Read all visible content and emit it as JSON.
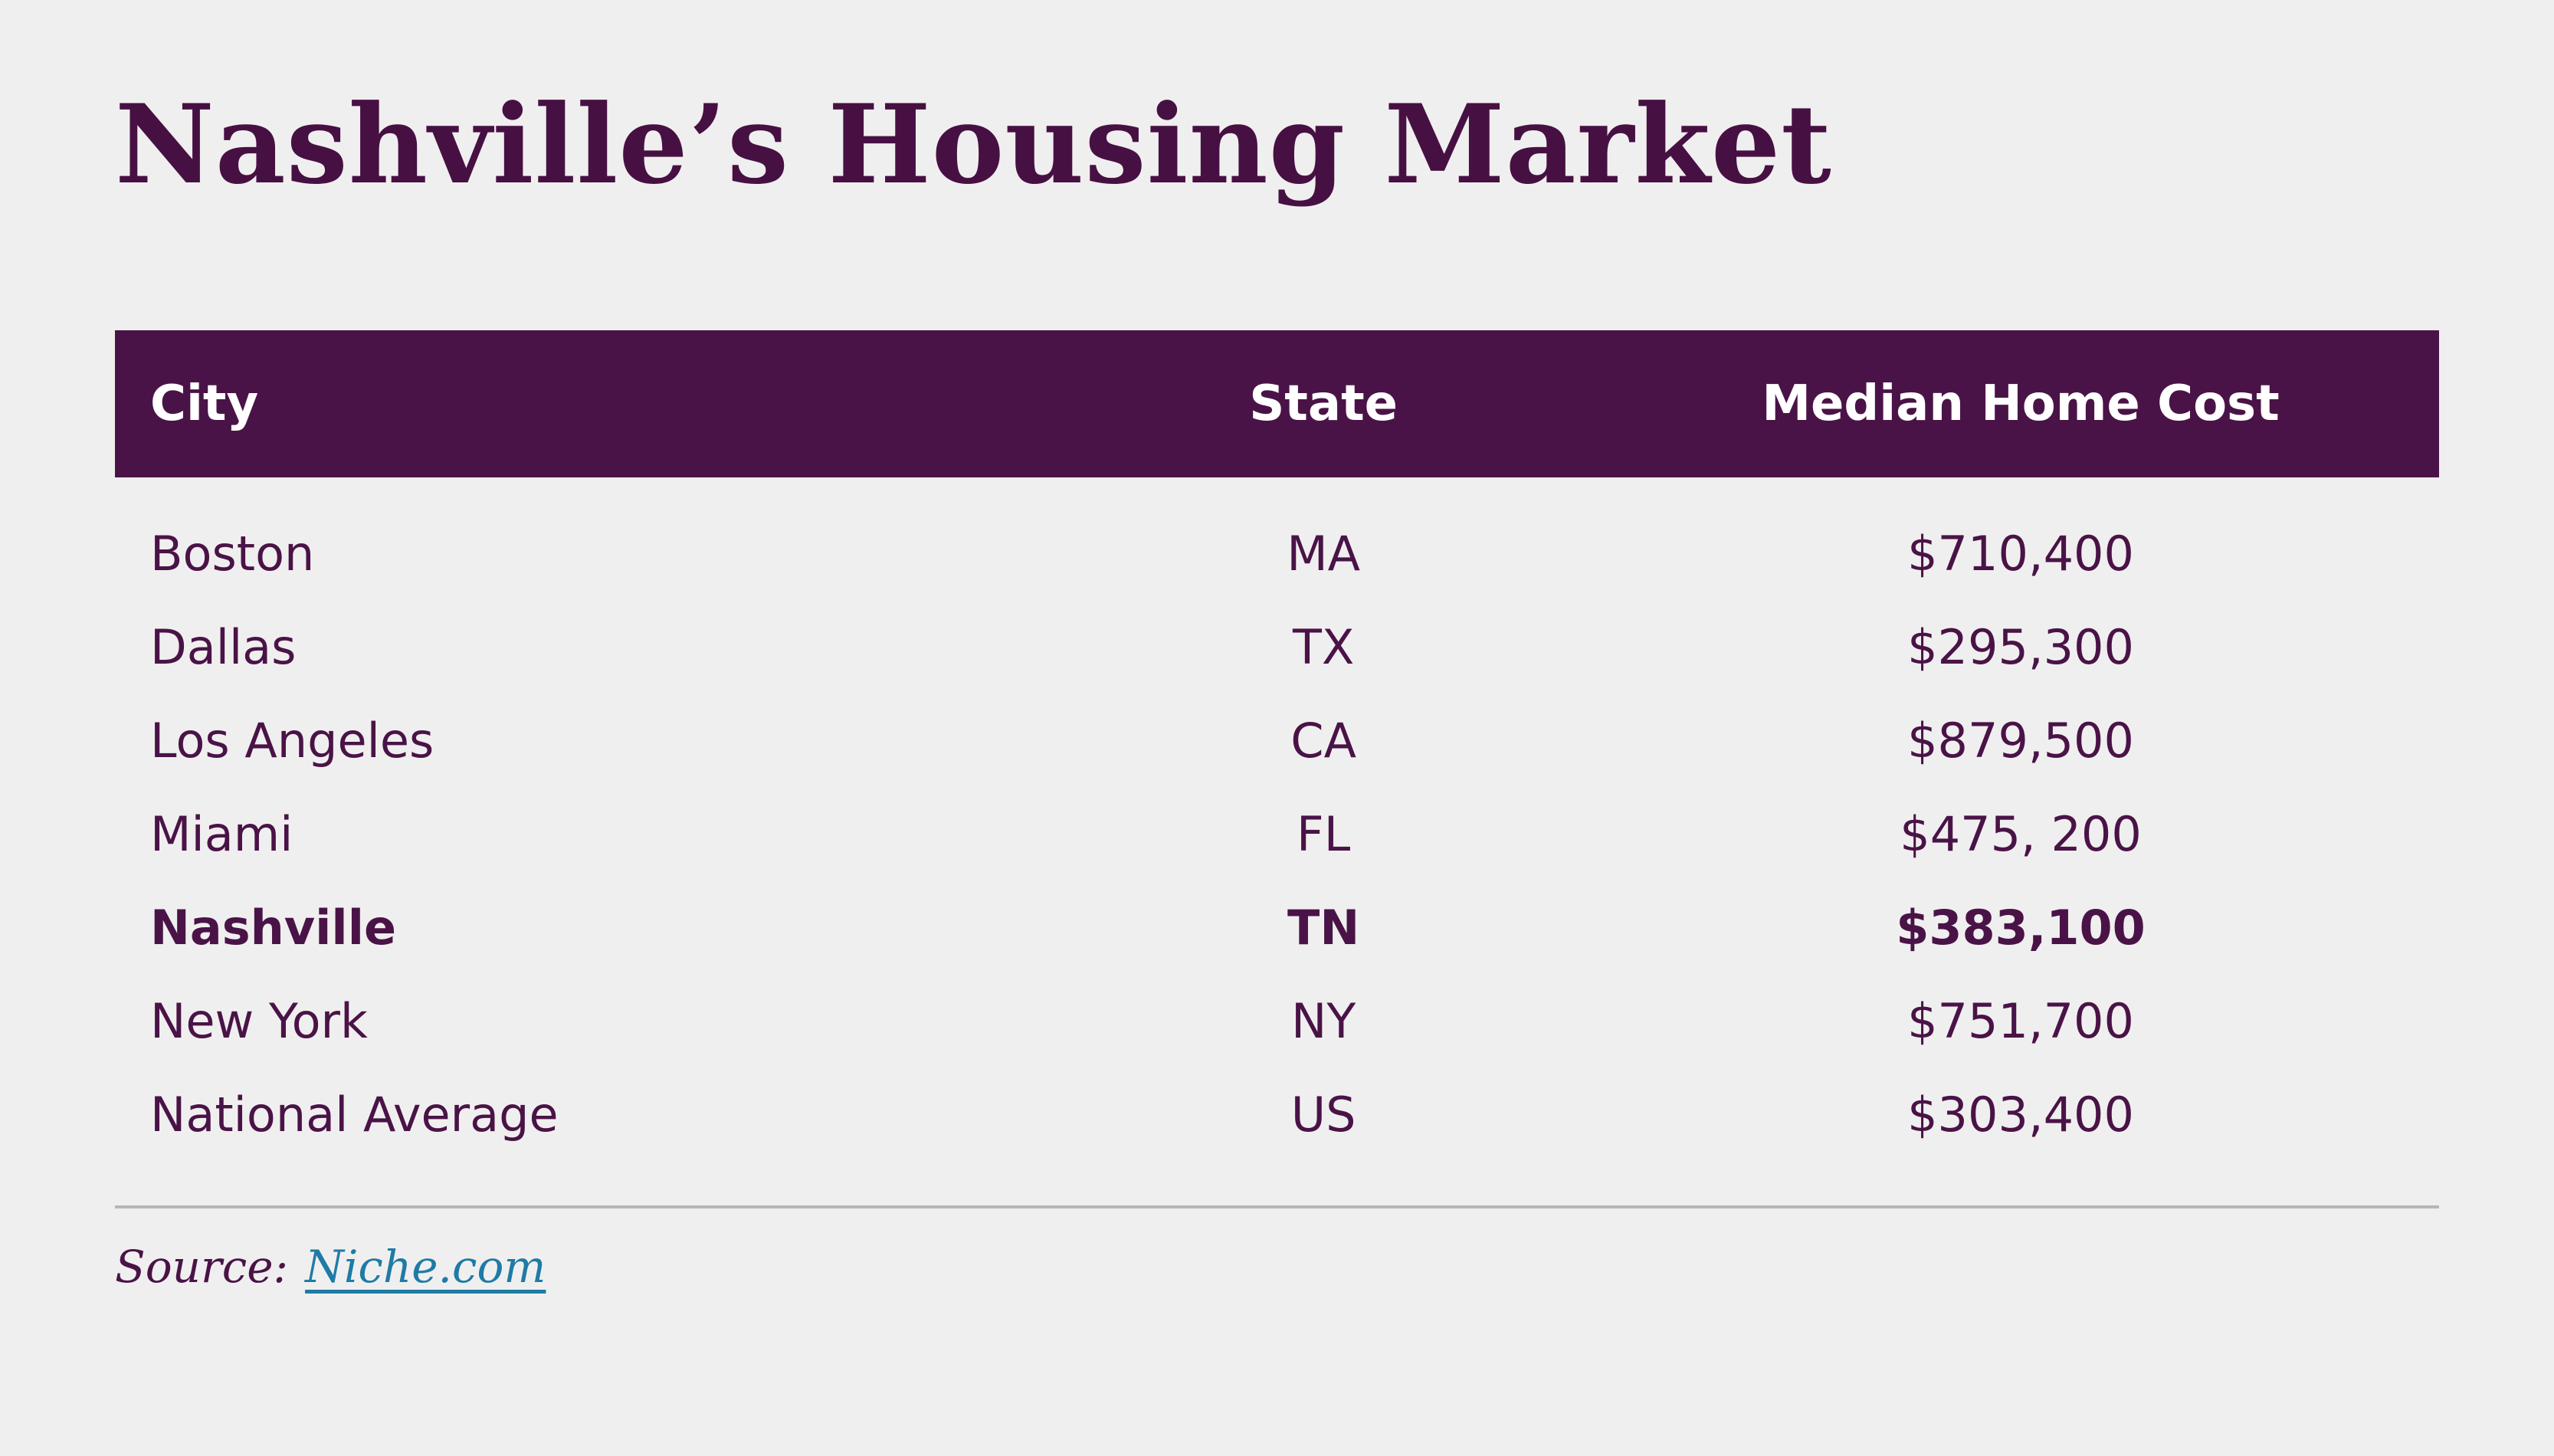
{
  "page": {
    "title": "Nashville’s Housing Market",
    "background": "#f0efef"
  },
  "colors": {
    "primary_purple": "#4a1347",
    "title_purple": "#471043",
    "header_text_white": "#ffffff",
    "link_teal": "#1e7ba6",
    "divider_gray": "#b7b6b6",
    "background_gray": "#f0efef"
  },
  "chart_data": {
    "type": "table",
    "title": "Nashville’s Housing Market",
    "columns": [
      "City",
      "State",
      "Median Home Cost"
    ],
    "rows": [
      [
        "Boston",
        "MA",
        "$710,400"
      ],
      [
        "Dallas",
        "TX",
        "$295,300"
      ],
      [
        "Los Angeles",
        "CA",
        "$879,500"
      ],
      [
        "Miami",
        "FL",
        "$475, 200"
      ],
      [
        "Nashville",
        "TN",
        "$383,100"
      ],
      [
        "New York",
        "NY",
        "$751,700"
      ],
      [
        "National Average",
        "US",
        "$303,400"
      ]
    ],
    "highlighted_row": "Nashville",
    "median_home_cost_values_usd": [
      710400,
      295300,
      879500,
      475200,
      383100,
      751700,
      303400
    ],
    "source": "Niche.com"
  },
  "source": {
    "label": "Source:",
    "link_text": "Niche.com"
  }
}
